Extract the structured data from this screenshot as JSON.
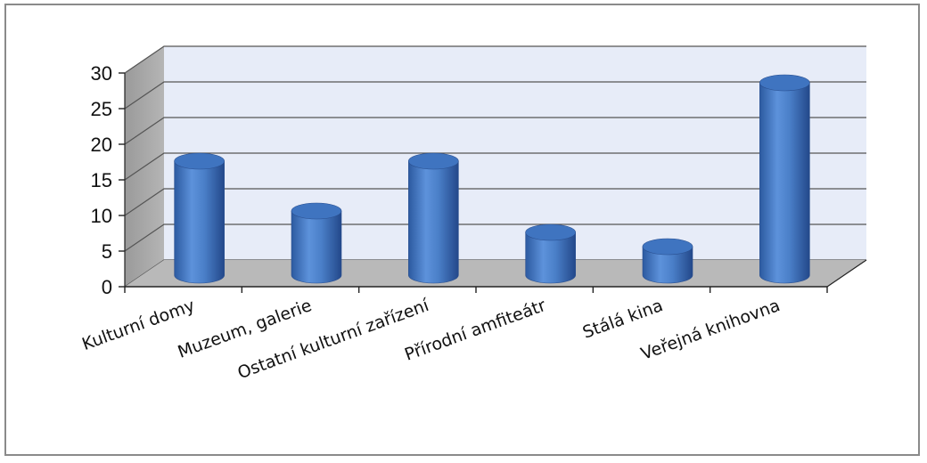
{
  "chart_data": {
    "type": "bar",
    "style": "3d-cylinder",
    "title": "",
    "xlabel": "",
    "ylabel": "",
    "categories": [
      "Kulturní domy",
      "Muzeum, galerie",
      "Ostatní kulturní zařízení",
      "Přírodní amfiteátr",
      "Stálá kina",
      "Veřejná knihovna"
    ],
    "values": [
      16,
      9,
      16,
      6,
      4,
      27
    ],
    "ylim": [
      0,
      30
    ],
    "yticks": [
      0,
      5,
      10,
      15,
      20,
      25,
      30
    ],
    "ytick_labels": [
      "0",
      "5",
      "10",
      "15",
      "20",
      "25",
      "30"
    ],
    "grid": true,
    "legend": "none",
    "colors": {
      "bar": "#4a7fc8",
      "bar_top": "#3f74c0",
      "wall": "#e7ecf8",
      "floor": "#b9b9b9",
      "gridline": "#555555"
    }
  }
}
